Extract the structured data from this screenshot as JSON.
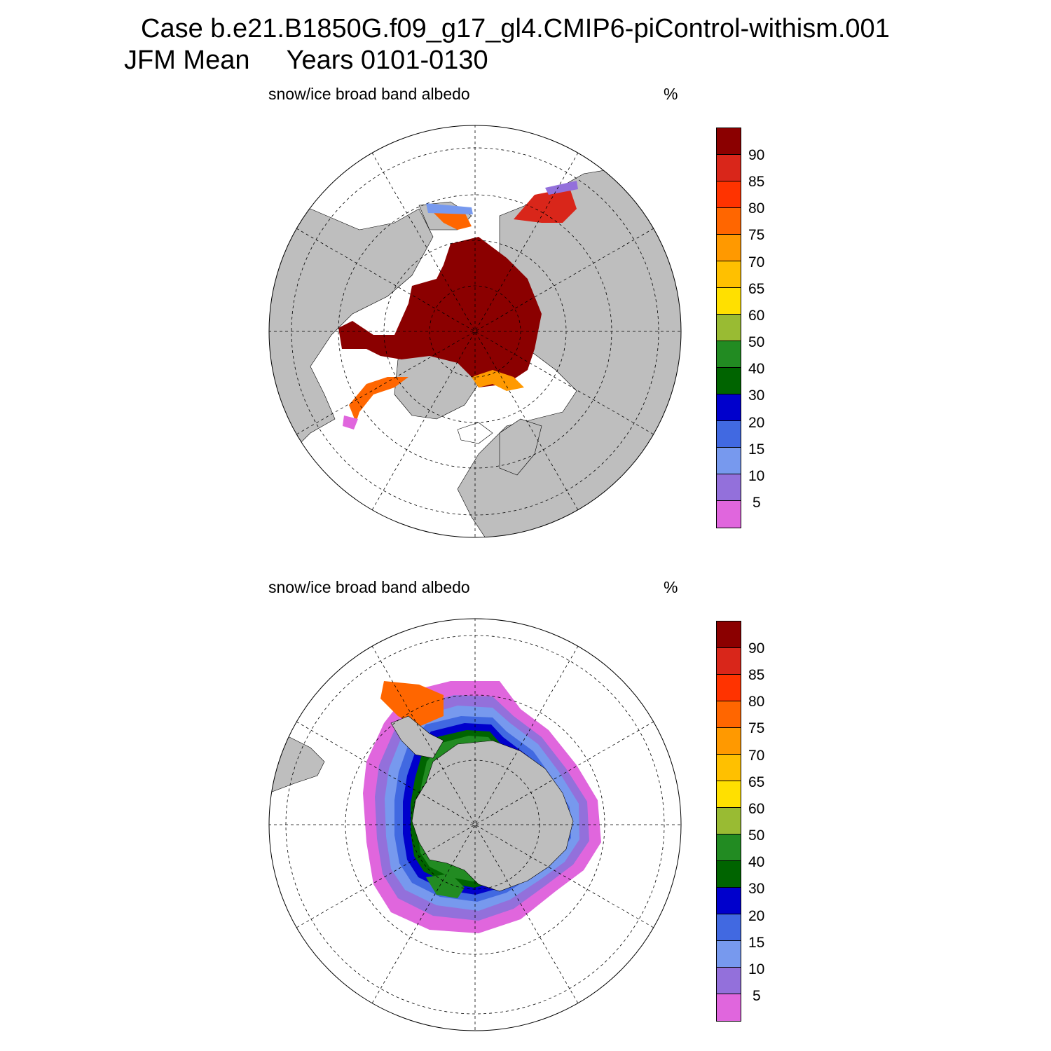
{
  "figure": {
    "title_line1": "Case b.e21.B1850G.f09_g17_gl4.CMIP6-piControl-withism.001",
    "title_line2": "JFM Mean     Years 0101-0130"
  },
  "panels": [
    {
      "hemisphere": "north",
      "title": "snow/ice broad band albedo",
      "units": "%"
    },
    {
      "hemisphere": "south",
      "title": "snow/ice broad band albedo",
      "units": "%"
    }
  ],
  "colorbar": {
    "labels": [
      "90",
      "85",
      "80",
      "75",
      "70",
      "65",
      "60",
      "50",
      "40",
      "30",
      "20",
      "15",
      "10",
      "5"
    ],
    "colors_top_to_bottom": [
      "#8b0000",
      "#d9261a",
      "#ff3300",
      "#ff6600",
      "#ff9900",
      "#ffc000",
      "#ffe000",
      "#99bb33",
      "#228b22",
      "#006400",
      "#0000cc",
      "#4169e1",
      "#7799ee",
      "#9370db",
      "#e066dd"
    ]
  },
  "land_color": "#bebebe",
  "ocean_color": "#ffffff"
}
